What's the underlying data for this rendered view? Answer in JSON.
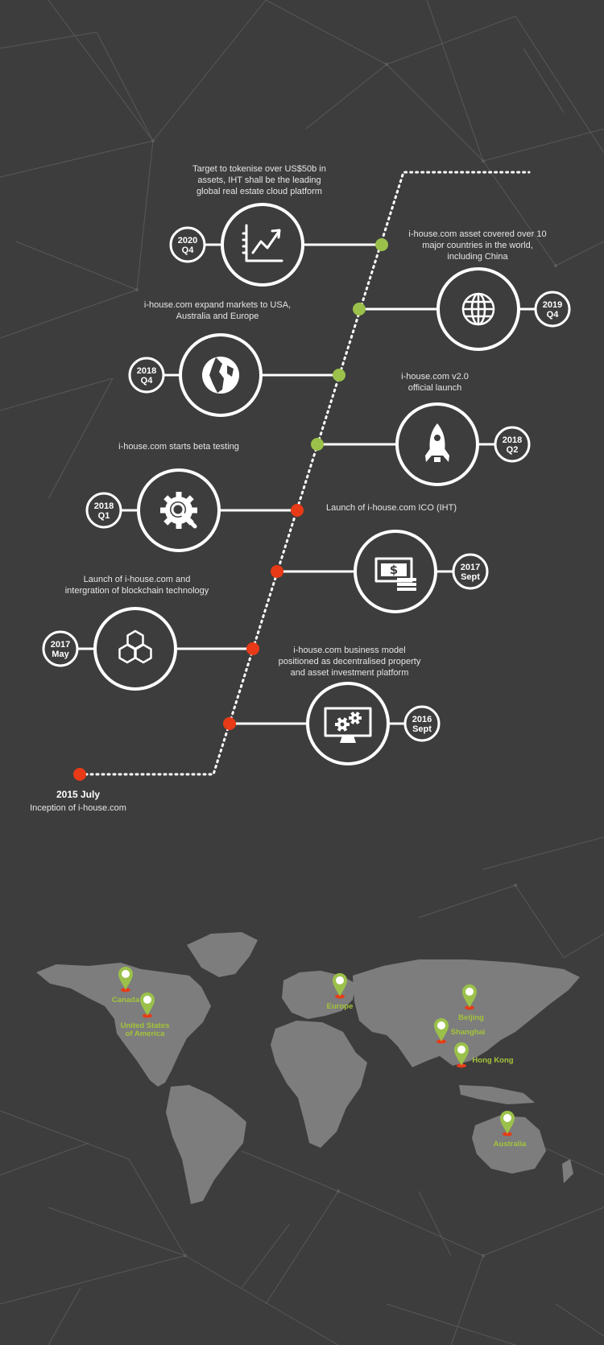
{
  "colors": {
    "background": "#3d3d3d",
    "line": "#ffffff",
    "accent_green": "#9bc14a",
    "accent_red": "#e83a17",
    "continent": "#7d7d7d",
    "pin_label": "#a4c43a"
  },
  "milestones": [
    {
      "date_line1": "2020",
      "date_line2": "Q4",
      "icon": "chart-up-icon",
      "dot": "green",
      "label": "Target to tokenise over US$50b in\nassets,  IHT shall be the leading\nglobal real estate cloud platform"
    },
    {
      "date_line1": "2019",
      "date_line2": "Q4",
      "icon": "globe-grid-icon",
      "dot": "green",
      "label": "i-house.com asset covered over 10\nmajor countries in the world,\nincluding China"
    },
    {
      "date_line1": "2018",
      "date_line2": "Q4",
      "icon": "earth-icon",
      "dot": "green",
      "label": "i-house.com expand markets to USA,\nAustralia and Europe"
    },
    {
      "date_line1": "2018",
      "date_line2": "Q2",
      "icon": "rocket-icon",
      "dot": "green",
      "label": "i-house.com v2.0\nofficial launch"
    },
    {
      "date_line1": "2018",
      "date_line2": "Q1",
      "icon": "gear-search-icon",
      "dot": "red",
      "label": "i-house.com starts beta testing"
    },
    {
      "date_line1": "2017",
      "date_line2": "Sept",
      "icon": "money-icon",
      "dot": "red",
      "label": "Launch of i-house.com ICO (IHT)"
    },
    {
      "date_line1": "2017",
      "date_line2": "May",
      "icon": "hexagons-icon",
      "dot": "red",
      "label": "Launch of i-house.com and\nintergration of blockchain technology"
    },
    {
      "date_line1": "2016",
      "date_line2": "Sept",
      "icon": "monitor-gears-icon",
      "dot": "red",
      "label": "i-house.com business model\npositioned as decentralised property\nand asset investment platform"
    }
  ],
  "origin": {
    "date": "2015 July",
    "text": "Inception of i-house.com"
  },
  "locations": [
    {
      "name": "Canada"
    },
    {
      "name": "United States\nof America"
    },
    {
      "name": "Europe"
    },
    {
      "name": "Beijing"
    },
    {
      "name": "Shanghai"
    },
    {
      "name": "Hong Kong"
    },
    {
      "name": "Australia"
    }
  ]
}
